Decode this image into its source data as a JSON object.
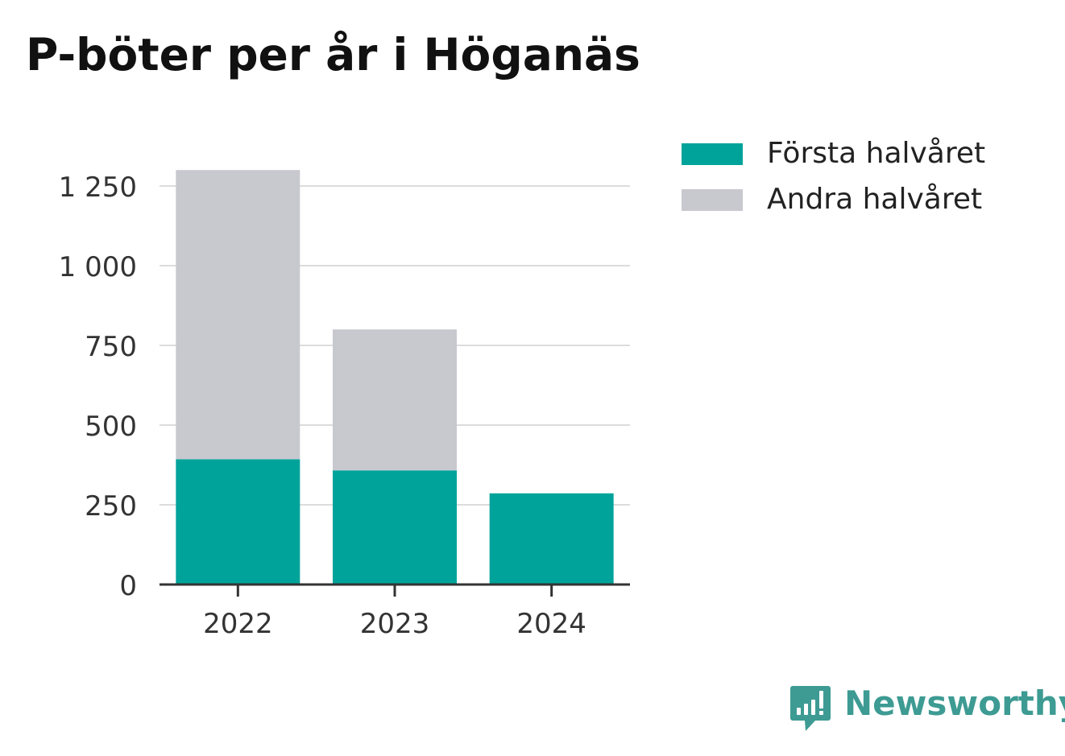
{
  "title": "P-böter per år i Höganäs",
  "brand": {
    "name": "Newsworthy",
    "icon": "newsworthy-logo-icon",
    "color": "#3d9b93"
  },
  "legend": [
    {
      "label": "Första halvåret",
      "color": "#00a39a"
    },
    {
      "label": "Andra halvåret",
      "color": "#c8c8cf"
    }
  ],
  "chart_data": {
    "type": "bar",
    "stacked": true,
    "title": "P-böter per år i Höganäs",
    "xlabel": "",
    "ylabel": "",
    "categories": [
      "2022",
      "2023",
      "2024"
    ],
    "series": [
      {
        "name": "Första halvåret",
        "color": "#00a39a",
        "values": [
          393,
          358,
          286
        ]
      },
      {
        "name": "Andra halvåret",
        "color": "#c8c8cf",
        "values": [
          907,
          442,
          0
        ]
      }
    ],
    "ylim": [
      0,
      1300
    ],
    "yticks": [
      0,
      250,
      500,
      750,
      1000,
      1250
    ],
    "ytick_labels": [
      "0",
      "250",
      "500",
      "750",
      "1 000",
      "1 250"
    ],
    "grid": true,
    "legend_position": "right"
  }
}
